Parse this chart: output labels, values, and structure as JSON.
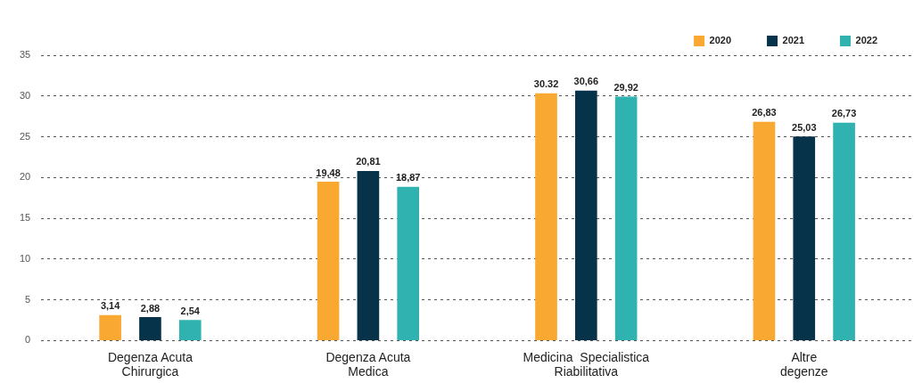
{
  "chart_data": {
    "type": "bar",
    "categories": [
      "Degenza Acuta\nChirurgica",
      "Degenza Acuta\nMedica",
      "Medicina  Specialistica\nRiabilitativa",
      "Altre\ndegenze"
    ],
    "series": [
      {
        "name": "2020",
        "color": "#f9a832",
        "values": [
          3.14,
          19.48,
          30.32,
          26.83
        ],
        "value_labels": [
          "3,14",
          "19,48",
          "30.32",
          "26,83"
        ]
      },
      {
        "name": "2021",
        "color": "#063349",
        "values": [
          2.88,
          20.81,
          30.66,
          25.03
        ],
        "value_labels": [
          "2,88",
          "20,81",
          "30,66",
          "25,03"
        ]
      },
      {
        "name": "2022",
        "color": "#2fb2b0",
        "values": [
          2.54,
          18.87,
          29.92,
          26.73
        ],
        "value_labels": [
          "2,54",
          "18,87",
          "29,92",
          "26,73"
        ]
      }
    ],
    "ylim": [
      0,
      35
    ],
    "yticks": [
      0,
      5,
      10,
      15,
      20,
      25,
      30,
      35
    ],
    "grid": "y",
    "legend": "top right"
  }
}
